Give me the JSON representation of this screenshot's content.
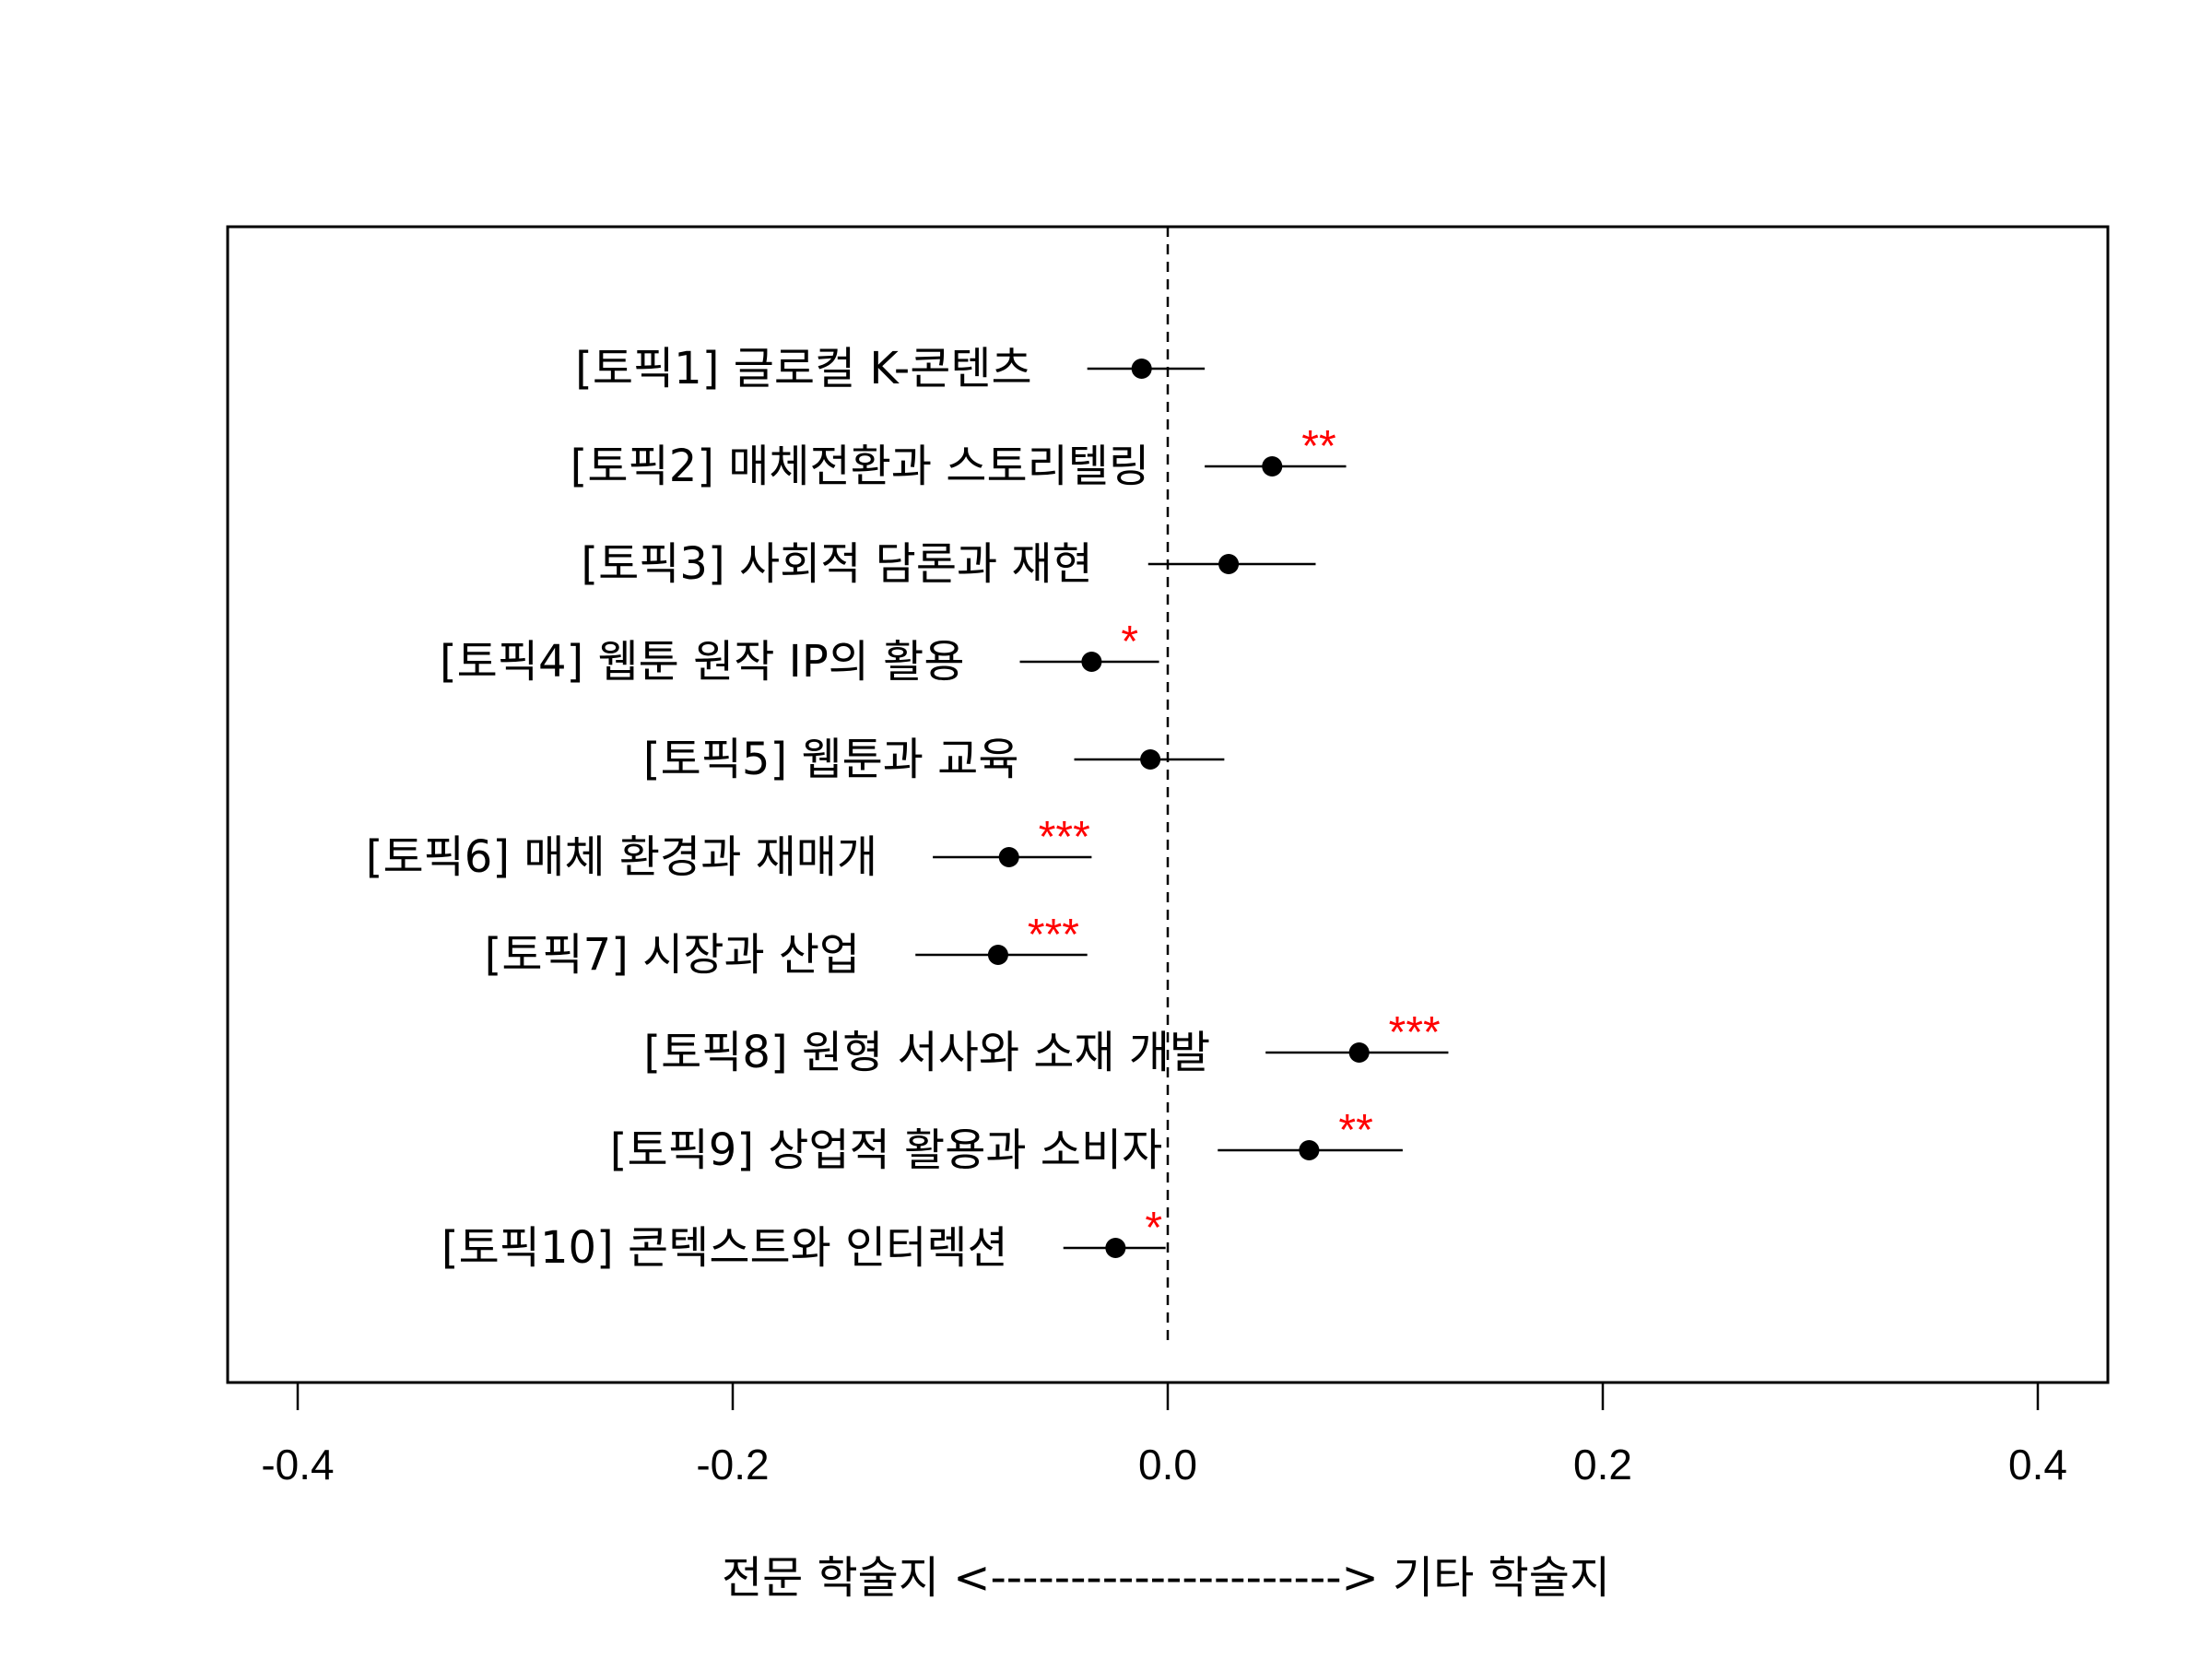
{
  "chart_data": {
    "type": "scatter",
    "title": "",
    "xlabel": "전문 학술지 <----------------------> 기타 학술지",
    "ylabel": "",
    "xlim": [
      -0.4,
      0.4
    ],
    "xticks": [
      "-0.4",
      "-0.2",
      "0.0",
      "0.2",
      "0.4"
    ],
    "xtick_values": [
      -0.4,
      -0.2,
      0.0,
      0.2,
      0.4
    ],
    "reference_line": 0.0,
    "grid": false,
    "legend": "none",
    "colors": {
      "point": "#000000",
      "interval": "#000000",
      "significance": "#ff0000",
      "reference": "#000000"
    },
    "topics": [
      {
        "label": "[토픽1] 글로컬 K-콘텐츠",
        "estimate": -0.012,
        "lower": -0.037,
        "upper": 0.017,
        "sig": ""
      },
      {
        "label": "[토픽2] 매체전환과 스토리텔링",
        "estimate": 0.048,
        "lower": 0.017,
        "upper": 0.082,
        "sig": "**"
      },
      {
        "label": "[토픽3] 사회적 담론과 재현",
        "estimate": 0.028,
        "lower": -0.009,
        "upper": 0.068,
        "sig": ""
      },
      {
        "label": "[토픽4] 웹툰 원작 IP의 활용",
        "estimate": -0.035,
        "lower": -0.068,
        "upper": -0.004,
        "sig": "*"
      },
      {
        "label": "[토픽5] 웹툰과 교육",
        "estimate": -0.008,
        "lower": -0.043,
        "upper": 0.026,
        "sig": ""
      },
      {
        "label": "[토픽6] 매체 환경과 재매개",
        "estimate": -0.073,
        "lower": -0.108,
        "upper": -0.035,
        "sig": "***"
      },
      {
        "label": "[토픽7] 시장과 산업",
        "estimate": -0.078,
        "lower": -0.116,
        "upper": -0.037,
        "sig": "***"
      },
      {
        "label": "[토픽8] 원형 서사와 소재 개발",
        "estimate": 0.088,
        "lower": 0.045,
        "upper": 0.129,
        "sig": "***"
      },
      {
        "label": "[토픽9] 상업적 활용과 소비자",
        "estimate": 0.065,
        "lower": 0.023,
        "upper": 0.108,
        "sig": "**"
      },
      {
        "label": "[토픽10] 콘텍스트와 인터렉션",
        "estimate": -0.024,
        "lower": -0.048,
        "upper": -0.001,
        "sig": "*"
      }
    ]
  }
}
